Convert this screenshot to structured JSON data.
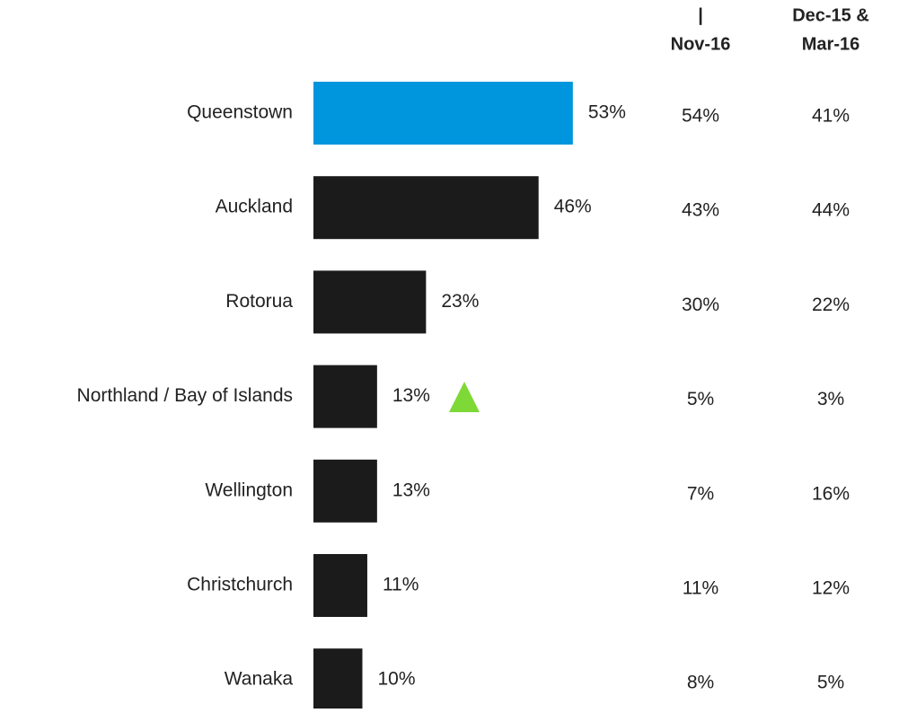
{
  "chart_data": {
    "type": "bar",
    "orientation": "horizontal",
    "categories": [
      "Queenstown",
      "Auckland",
      "Rotorua",
      "Northland / Bay of Islands",
      "Wellington",
      "Christchurch",
      "Wanaka"
    ],
    "values": [
      53,
      46,
      23,
      13,
      13,
      11,
      10
    ],
    "value_labels": [
      "53%",
      "46%",
      "23%",
      "13%",
      "13%",
      "11%",
      "10%"
    ],
    "colors": [
      "#0096dd",
      "#1b1b1b",
      "#1b1b1b",
      "#1b1b1b",
      "#1b1b1b",
      "#1b1b1b",
      "#1b1b1b"
    ],
    "xlim": [
      0,
      100
    ],
    "columns": [
      {
        "header": [
          "|",
          "Nov-16"
        ],
        "values": [
          "54%",
          "43%",
          "30%",
          "5%",
          "7%",
          "11%",
          "8%"
        ]
      },
      {
        "header": [
          "Dec-15 &",
          "Mar-16"
        ],
        "values": [
          "41%",
          "44%",
          "22%",
          "3%",
          "16%",
          "12%",
          "5%"
        ]
      }
    ]
  }
}
